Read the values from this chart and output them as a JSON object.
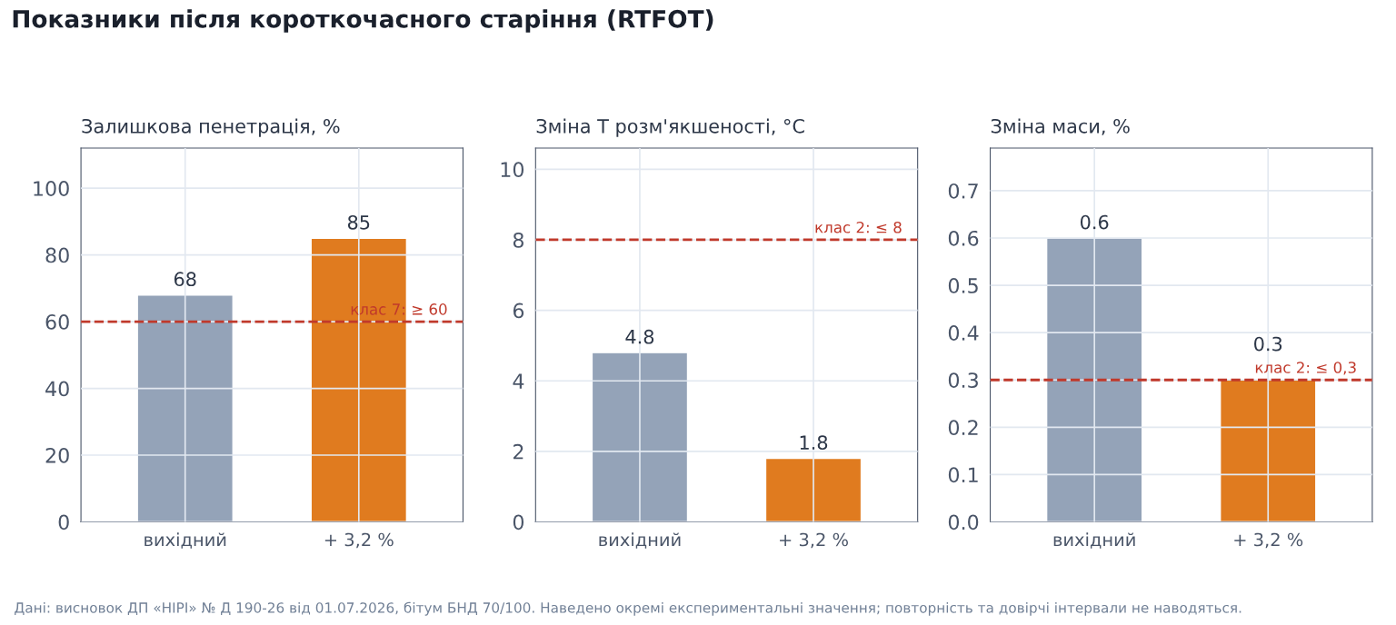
{
  "chart_data": [
    {
      "type": "bar",
      "title": "Показники після короткочасного старіння (RTFOT)",
      "subtitle": "Залишкова пенетрація, %",
      "categories": [
        "вихідний",
        "+ 3,2 %"
      ],
      "values": [
        68,
        85
      ],
      "colors": [
        "#94a3b8",
        "#e07b1f"
      ],
      "data_labels": true,
      "ylim": [
        0,
        112
      ],
      "yticks": [
        0,
        20,
        40,
        60,
        80,
        100
      ],
      "grid": true,
      "ref_lines": [
        {
          "axis": "y",
          "value": 60,
          "label": "клас 7: ≥ 60",
          "color": "#c0392b",
          "line_style": "dashed"
        }
      ],
      "annotations": [
        "Дані: висновок ДП «НІРІ» № Д 190-26 від 01.07.2026, бітум БНД 70/100. Наведено окремі експериментальні значення; повторність та довірчі інтервали не наводяться."
      ]
    },
    {
      "type": "bar",
      "subtitle": "Зміна Т розм'якшеності, °C",
      "categories": [
        "вихідний",
        "+ 3,2 %"
      ],
      "values": [
        4.8,
        1.8
      ],
      "colors": [
        "#94a3b8",
        "#e07b1f"
      ],
      "data_labels": true,
      "ylim": [
        0,
        10.6
      ],
      "yticks": [
        0,
        2,
        4,
        6,
        8,
        10
      ],
      "grid": true,
      "ref_lines": [
        {
          "axis": "y",
          "value": 8,
          "label": "клас 2: ≤ 8",
          "color": "#c0392b",
          "line_style": "dashed"
        }
      ]
    },
    {
      "type": "bar",
      "subtitle": "Зміна маси, %",
      "categories": [
        "вихідний",
        "+ 3,2 %"
      ],
      "values": [
        0.6,
        0.3
      ],
      "colors": [
        "#94a3b8",
        "#e07b1f"
      ],
      "data_labels": true,
      "ylim": [
        0,
        0.79
      ],
      "yticks": [
        {
          "value": 0,
          "label": "0.0"
        },
        0.1,
        0.2,
        0.3,
        0.4,
        0.5,
        0.6,
        0.7
      ],
      "grid": true,
      "ref_lines": [
        {
          "axis": "y",
          "value": 0.3,
          "label": "клас 2: ≤ 0,3",
          "color": "#c0392b",
          "line_style": "dashed"
        }
      ]
    }
  ]
}
